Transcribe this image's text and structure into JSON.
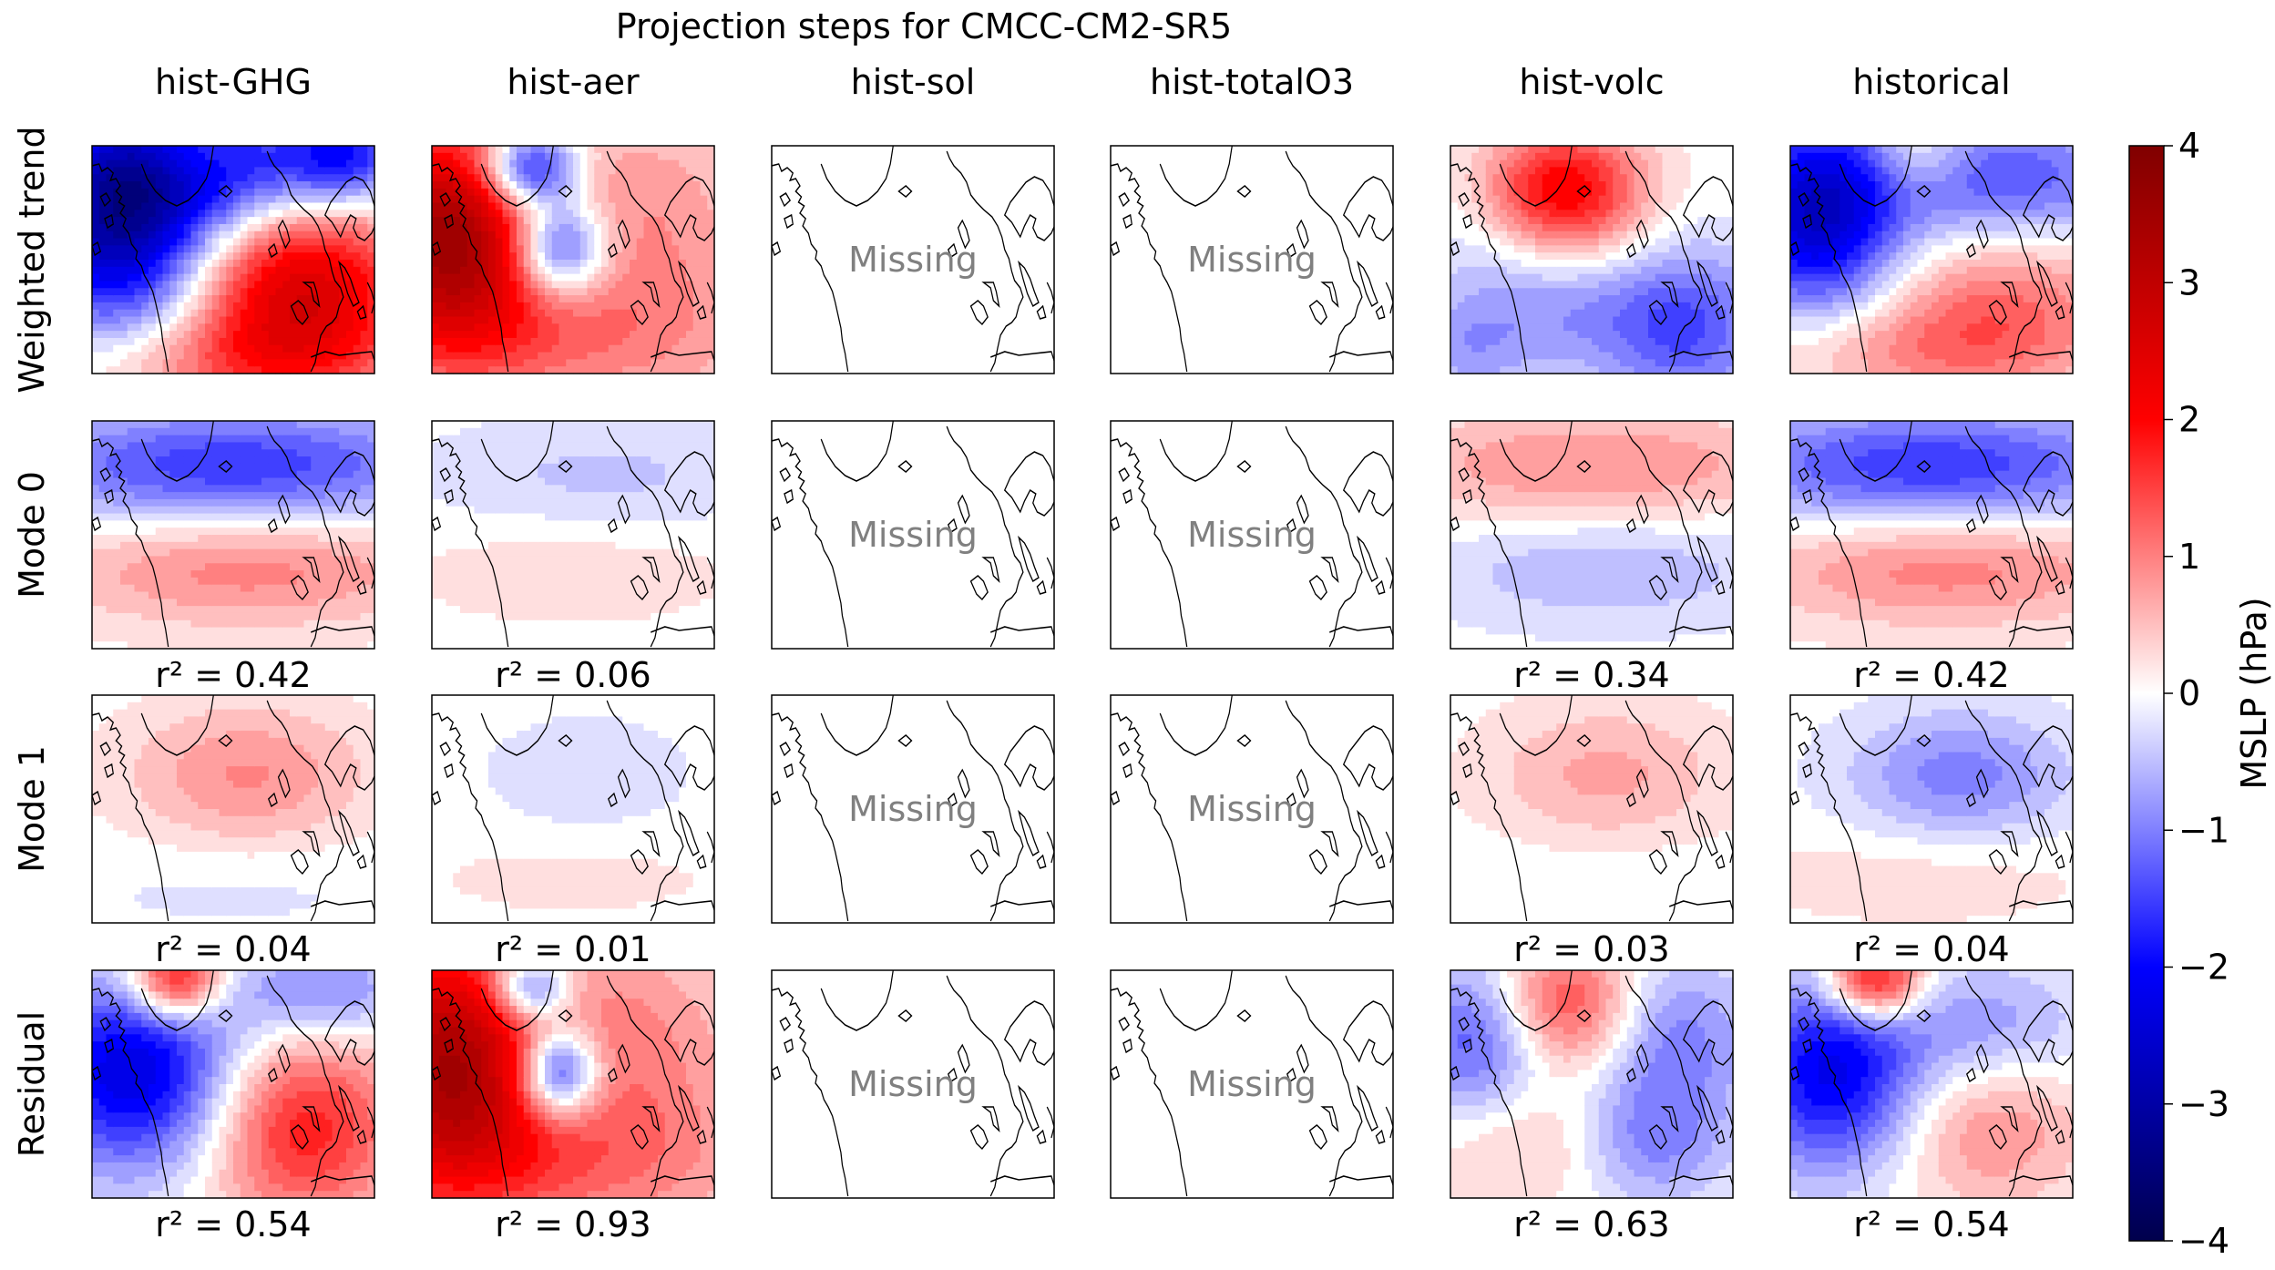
{
  "title": "Projection steps for CMCC-CM2-SR5",
  "columns": [
    "hist-GHG",
    "hist-aer",
    "hist-sol",
    "hist-totalO3",
    "hist-volc",
    "historical"
  ],
  "rows": [
    "Weighted trend",
    "Mode 0",
    "Mode 1",
    "Residual"
  ],
  "missing_label": "Missing",
  "colorbar": {
    "label": "MSLP (hPa)",
    "range": [
      -4,
      4
    ],
    "ticks": [
      "−4",
      "−3",
      "−2",
      "−1",
      "0",
      "1",
      "2",
      "3",
      "4"
    ],
    "colormap": "seismic",
    "colors": [
      "#00004c",
      "#0000ff",
      "#ffffff",
      "#ff0000",
      "#800000"
    ]
  },
  "r2_labels": [
    [
      null,
      null,
      null,
      null,
      null,
      null
    ],
    [
      "r² = 0.42",
      "r² = 0.06",
      null,
      null,
      "r² = 0.34",
      "r² = 0.42"
    ],
    [
      "r² = 0.04",
      "r² = 0.01",
      null,
      null,
      "r² = 0.03",
      "r² = 0.04"
    ],
    [
      "r² = 0.54",
      "r² = 0.93",
      null,
      null,
      "r² = 0.63",
      "r² = 0.54"
    ]
  ],
  "chart_data": {
    "type": "heatmap",
    "title": "Projection steps for CMCC-CM2-SR5",
    "variable": "MSLP (hPa)",
    "vmin": -4,
    "vmax": 4,
    "panels": [
      {
        "row": "Weighted trend",
        "col": "hist-GHG",
        "missing": false,
        "blobs": [
          {
            "u": 0.1,
            "v": 0.3,
            "val": -3.2,
            "sx": 0.22,
            "sy": 0.35
          },
          {
            "u": 0.5,
            "v": 0.1,
            "val": -1.8,
            "sx": 0.25,
            "sy": 0.2
          },
          {
            "u": 0.35,
            "v": 0.05,
            "val": 0.6,
            "sx": 0.12,
            "sy": 0.1
          },
          {
            "u": 0.9,
            "v": 0.05,
            "val": -1.8,
            "sx": 0.15,
            "sy": 0.15
          },
          {
            "u": 0.75,
            "v": 0.65,
            "val": 2.6,
            "sx": 0.28,
            "sy": 0.3
          },
          {
            "u": 0.4,
            "v": 0.95,
            "val": 0.8,
            "sx": 0.4,
            "sy": 0.15
          }
        ]
      },
      {
        "row": "Weighted trend",
        "col": "hist-aer",
        "missing": false,
        "blobs": [
          {
            "u": 0.05,
            "v": 0.4,
            "val": 3.4,
            "sx": 0.25,
            "sy": 0.35
          },
          {
            "u": 0.35,
            "v": 0.1,
            "val": -2.6,
            "sx": 0.12,
            "sy": 0.12
          },
          {
            "u": 0.45,
            "v": 0.45,
            "val": -2.4,
            "sx": 0.12,
            "sy": 0.15
          },
          {
            "u": 0.75,
            "v": 0.3,
            "val": 0.8,
            "sx": 0.3,
            "sy": 0.35
          },
          {
            "u": 0.5,
            "v": 0.85,
            "val": 0.9,
            "sx": 0.5,
            "sy": 0.25
          }
        ]
      },
      {
        "row": "Weighted trend",
        "col": "hist-sol",
        "missing": true,
        "blobs": []
      },
      {
        "row": "Weighted trend",
        "col": "hist-totalO3",
        "missing": true,
        "blobs": []
      },
      {
        "row": "Weighted trend",
        "col": "hist-volc",
        "missing": false,
        "blobs": [
          {
            "u": 0.4,
            "v": 0.2,
            "val": 2.2,
            "sx": 0.2,
            "sy": 0.2
          },
          {
            "u": 0.15,
            "v": 0.5,
            "val": -0.4,
            "sx": 0.2,
            "sy": 0.25
          },
          {
            "u": 0.85,
            "v": 0.8,
            "val": -1.3,
            "sx": 0.2,
            "sy": 0.25
          },
          {
            "u": 0.45,
            "v": 0.75,
            "val": -0.7,
            "sx": 0.25,
            "sy": 0.2
          },
          {
            "u": 0.05,
            "v": 0.9,
            "val": -0.6,
            "sx": 0.15,
            "sy": 0.15
          }
        ]
      },
      {
        "row": "Weighted trend",
        "col": "historical",
        "missing": false,
        "blobs": [
          {
            "u": 0.1,
            "v": 0.3,
            "val": -2.6,
            "sx": 0.2,
            "sy": 0.3
          },
          {
            "u": 0.45,
            "v": 0.05,
            "val": 0.8,
            "sx": 0.12,
            "sy": 0.12
          },
          {
            "u": 0.75,
            "v": 0.15,
            "val": -1.4,
            "sx": 0.35,
            "sy": 0.2
          },
          {
            "u": 0.75,
            "v": 0.7,
            "val": 1.1,
            "sx": 0.3,
            "sy": 0.25
          },
          {
            "u": 0.4,
            "v": 0.9,
            "val": 0.7,
            "sx": 0.4,
            "sy": 0.15
          }
        ]
      },
      {
        "row": "Mode 0",
        "col": "hist-GHG",
        "missing": false,
        "blobs": [
          {
            "u": 0.5,
            "v": 0.2,
            "val": -1.6,
            "sx": 0.55,
            "sy": 0.18
          },
          {
            "u": 0.55,
            "v": 0.65,
            "val": 1.0,
            "sx": 0.5,
            "sy": 0.18
          }
        ]
      },
      {
        "row": "Mode 0",
        "col": "hist-aer",
        "missing": false,
        "blobs": [
          {
            "u": 0.6,
            "v": 0.25,
            "val": -0.45,
            "sx": 0.45,
            "sy": 0.18
          },
          {
            "u": 0.5,
            "v": 0.65,
            "val": 0.3,
            "sx": 0.45,
            "sy": 0.18
          }
        ]
      },
      {
        "row": "Mode 0",
        "col": "hist-sol",
        "missing": true,
        "blobs": []
      },
      {
        "row": "Mode 0",
        "col": "hist-totalO3",
        "missing": true,
        "blobs": []
      },
      {
        "row": "Mode 0",
        "col": "hist-volc",
        "missing": false,
        "blobs": [
          {
            "u": 0.5,
            "v": 0.2,
            "val": 0.9,
            "sx": 0.55,
            "sy": 0.18
          },
          {
            "u": 0.55,
            "v": 0.65,
            "val": -0.6,
            "sx": 0.45,
            "sy": 0.18
          }
        ]
      },
      {
        "row": "Mode 0",
        "col": "historical",
        "missing": false,
        "blobs": [
          {
            "u": 0.5,
            "v": 0.2,
            "val": -1.6,
            "sx": 0.55,
            "sy": 0.18
          },
          {
            "u": 0.55,
            "v": 0.65,
            "val": 1.0,
            "sx": 0.5,
            "sy": 0.18
          }
        ]
      },
      {
        "row": "Mode 1",
        "col": "hist-GHG",
        "missing": false,
        "blobs": [
          {
            "u": 0.55,
            "v": 0.35,
            "val": 0.9,
            "sx": 0.3,
            "sy": 0.22
          },
          {
            "u": 0.5,
            "v": 0.85,
            "val": -0.2,
            "sx": 0.45,
            "sy": 0.15
          }
        ]
      },
      {
        "row": "Mode 1",
        "col": "hist-aer",
        "missing": false,
        "blobs": [
          {
            "u": 0.55,
            "v": 0.35,
            "val": -0.35,
            "sx": 0.25,
            "sy": 0.18
          },
          {
            "u": 0.5,
            "v": 0.8,
            "val": 0.2,
            "sx": 0.45,
            "sy": 0.15
          }
        ]
      },
      {
        "row": "Mode 1",
        "col": "hist-sol",
        "missing": true,
        "blobs": []
      },
      {
        "row": "Mode 1",
        "col": "hist-totalO3",
        "missing": true,
        "blobs": []
      },
      {
        "row": "Mode 1",
        "col": "hist-volc",
        "missing": false,
        "blobs": [
          {
            "u": 0.55,
            "v": 0.35,
            "val": 0.7,
            "sx": 0.3,
            "sy": 0.22
          },
          {
            "u": 0.5,
            "v": 0.85,
            "val": -0.15,
            "sx": 0.45,
            "sy": 0.15
          }
        ]
      },
      {
        "row": "Mode 1",
        "col": "historical",
        "missing": false,
        "blobs": [
          {
            "u": 0.6,
            "v": 0.35,
            "val": -1.0,
            "sx": 0.28,
            "sy": 0.2
          },
          {
            "u": 0.45,
            "v": 0.8,
            "val": 0.3,
            "sx": 0.45,
            "sy": 0.15
          }
        ]
      },
      {
        "row": "Residual",
        "col": "hist-GHG",
        "missing": false,
        "blobs": [
          {
            "u": 0.15,
            "v": 0.45,
            "val": -2.4,
            "sx": 0.25,
            "sy": 0.3
          },
          {
            "u": 0.3,
            "v": 0.05,
            "val": 2.4,
            "sx": 0.12,
            "sy": 0.12
          },
          {
            "u": 0.75,
            "v": 0.7,
            "val": 1.8,
            "sx": 0.25,
            "sy": 0.3
          },
          {
            "u": 0.6,
            "v": 0.1,
            "val": -0.6,
            "sx": 0.2,
            "sy": 0.15
          },
          {
            "u": 0.9,
            "v": 0.1,
            "val": -0.8,
            "sx": 0.15,
            "sy": 0.15
          }
        ]
      },
      {
        "row": "Residual",
        "col": "hist-aer",
        "missing": false,
        "blobs": [
          {
            "u": 0.05,
            "v": 0.4,
            "val": 3.2,
            "sx": 0.25,
            "sy": 0.4
          },
          {
            "u": 0.35,
            "v": 0.08,
            "val": -2.0,
            "sx": 0.1,
            "sy": 0.1
          },
          {
            "u": 0.45,
            "v": 0.45,
            "val": -2.6,
            "sx": 0.1,
            "sy": 0.14
          },
          {
            "u": 0.7,
            "v": 0.3,
            "val": 0.9,
            "sx": 0.3,
            "sy": 0.35
          },
          {
            "u": 0.5,
            "v": 0.85,
            "val": 1.0,
            "sx": 0.5,
            "sy": 0.25
          }
        ]
      },
      {
        "row": "Residual",
        "col": "hist-sol",
        "missing": true,
        "blobs": []
      },
      {
        "row": "Residual",
        "col": "hist-totalO3",
        "missing": true,
        "blobs": []
      },
      {
        "row": "Residual",
        "col": "hist-volc",
        "missing": false,
        "blobs": [
          {
            "u": 0.4,
            "v": 0.15,
            "val": 1.6,
            "sx": 0.18,
            "sy": 0.2
          },
          {
            "u": 0.1,
            "v": 0.3,
            "val": -1.4,
            "sx": 0.18,
            "sy": 0.25
          },
          {
            "u": 0.8,
            "v": 0.3,
            "val": -1.0,
            "sx": 0.2,
            "sy": 0.25
          },
          {
            "u": 0.7,
            "v": 0.75,
            "val": -1.0,
            "sx": 0.2,
            "sy": 0.2
          },
          {
            "u": 0.3,
            "v": 0.75,
            "val": 0.6,
            "sx": 0.25,
            "sy": 0.2
          }
        ]
      },
      {
        "row": "Residual",
        "col": "historical",
        "missing": false,
        "blobs": [
          {
            "u": 0.3,
            "v": 0.05,
            "val": 2.4,
            "sx": 0.12,
            "sy": 0.12
          },
          {
            "u": 0.15,
            "v": 0.45,
            "val": -2.2,
            "sx": 0.22,
            "sy": 0.3
          },
          {
            "u": 0.7,
            "v": 0.25,
            "val": -0.8,
            "sx": 0.25,
            "sy": 0.2
          },
          {
            "u": 0.7,
            "v": 0.7,
            "val": 0.9,
            "sx": 0.25,
            "sy": 0.25
          }
        ]
      }
    ]
  }
}
